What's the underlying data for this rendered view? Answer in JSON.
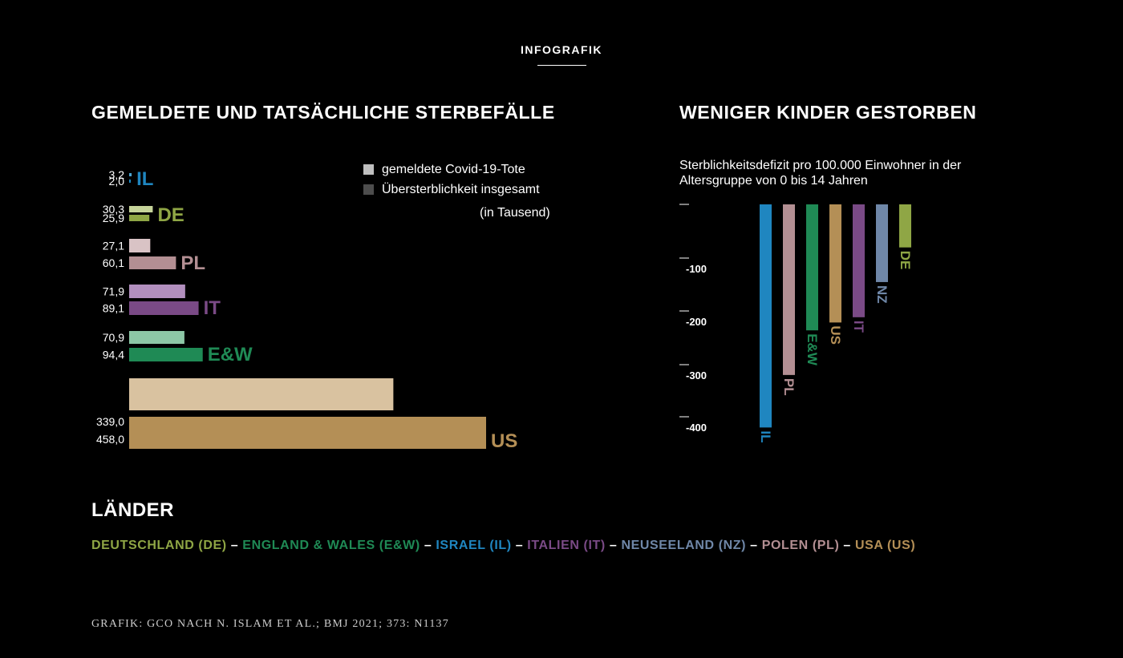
{
  "header": {
    "kicker": "INFOGRAFIK"
  },
  "left_title": "GEMELDETE UND TATSÄCHLICHE STERBEFÄLLE",
  "right_title": "WENIGER KINDER GESTORBEN",
  "right_subtitle": "Sterblichkeitsdefizit pro 100.000 Einwohner in der Altersgruppe von 0 bis 14 Jahren",
  "legend": {
    "reported": "gemeldete Covid-19-Tote",
    "excess": "Übersterblichkeit insgesamt",
    "unit": "(in Tausend)",
    "reported_color": "#bfbfbf",
    "excess_color": "#4d4d4d"
  },
  "chart_data": [
    {
      "type": "bar",
      "orientation": "horizontal",
      "title": "GEMELDETE UND TATSÄCHLICHE STERBEFÄLLE",
      "unit": "(in Tausend)",
      "series": [
        {
          "name": "gemeldete Covid-19-Tote",
          "values": [
            3.2,
            30.3,
            27.1,
            71.9,
            70.9,
            339.0
          ]
        },
        {
          "name": "Übersterblichkeit insgesamt",
          "values": [
            2.0,
            25.9,
            60.1,
            89.1,
            94.4,
            458.0
          ]
        }
      ],
      "categories": [
        "IL",
        "DE",
        "PL",
        "IT",
        "E&W",
        "US"
      ],
      "groups": [
        {
          "code": "IL",
          "reported": 3.2,
          "excess": 2.0,
          "reported_label": "3,2",
          "excess_label": "2,0",
          "color_light": "#4aa3d0",
          "color": "#1f86c0"
        },
        {
          "code": "DE",
          "reported": 30.3,
          "excess": 25.9,
          "reported_label": "30,3",
          "excess_label": "25,9",
          "color_light": "#c6d49a",
          "color": "#8fa645"
        },
        {
          "code": "PL",
          "reported": 27.1,
          "excess": 60.1,
          "reported_label": "27,1",
          "excess_label": "60,1",
          "color_light": "#d9c3c5",
          "color": "#b38f93"
        },
        {
          "code": "IT",
          "reported": 71.9,
          "excess": 89.1,
          "reported_label": "71,9",
          "excess_label": "89,1",
          "color_light": "#b28fbe",
          "color": "#7a4a86"
        },
        {
          "code": "E&W",
          "reported": 70.9,
          "excess": 94.4,
          "reported_label": "70,9",
          "excess_label": "94,4",
          "color_light": "#8dc7a6",
          "color": "#1f8a55"
        },
        {
          "code": "US",
          "reported": 339.0,
          "excess": 458.0,
          "reported_label": "339,0",
          "excess_label": "458,0",
          "color_light": "#d9c2a0",
          "color": "#b48f56"
        }
      ],
      "scale": {
        "min": 0,
        "max": 458
      }
    },
    {
      "type": "bar",
      "orientation": "vertical-negative",
      "title": "WENIGER KINDER GESTORBEN",
      "ylabel": "Sterblichkeitsdefizit pro 100.000 Einwohner in der Altersgruppe von 0 bis 14 Jahren",
      "ylim": [
        -430,
        0
      ],
      "ticks": [
        0,
        -100,
        -200,
        -300,
        -400
      ],
      "tick_labels": [
        "",
        "-100",
        "-200",
        "-300",
        "-400"
      ],
      "categories": [
        "IL",
        "PL",
        "E&W",
        "US",
        "IT",
        "NZ",
        "DE"
      ],
      "values": [
        -425,
        -325,
        -240,
        -225,
        -215,
        -148,
        -82
      ],
      "colors": [
        "#1f86c0",
        "#b38f93",
        "#1f8a55",
        "#b48f56",
        "#7a4a86",
        "#6f87a8",
        "#8fa645"
      ]
    }
  ],
  "countries": {
    "title": "LÄNDER",
    "separator": "–",
    "items": [
      {
        "label": "DEUTSCHLAND (DE)",
        "color": "#8fa645"
      },
      {
        "label": "ENGLAND & WALES (E&W)",
        "color": "#1f8a55"
      },
      {
        "label": "ISRAEL (IL)",
        "color": "#1f86c0"
      },
      {
        "label": "ITALIEN (IT)",
        "color": "#7a4a86"
      },
      {
        "label": "NEUSEELAND (NZ)",
        "color": "#6f87a8"
      },
      {
        "label": "POLEN (PL)",
        "color": "#b38f93"
      },
      {
        "label": "USA (US)",
        "color": "#b48f56"
      }
    ]
  },
  "source": "GRAFIK: GCO NACH N. ISLAM ET AL.; BMJ 2021; 373: N1137"
}
